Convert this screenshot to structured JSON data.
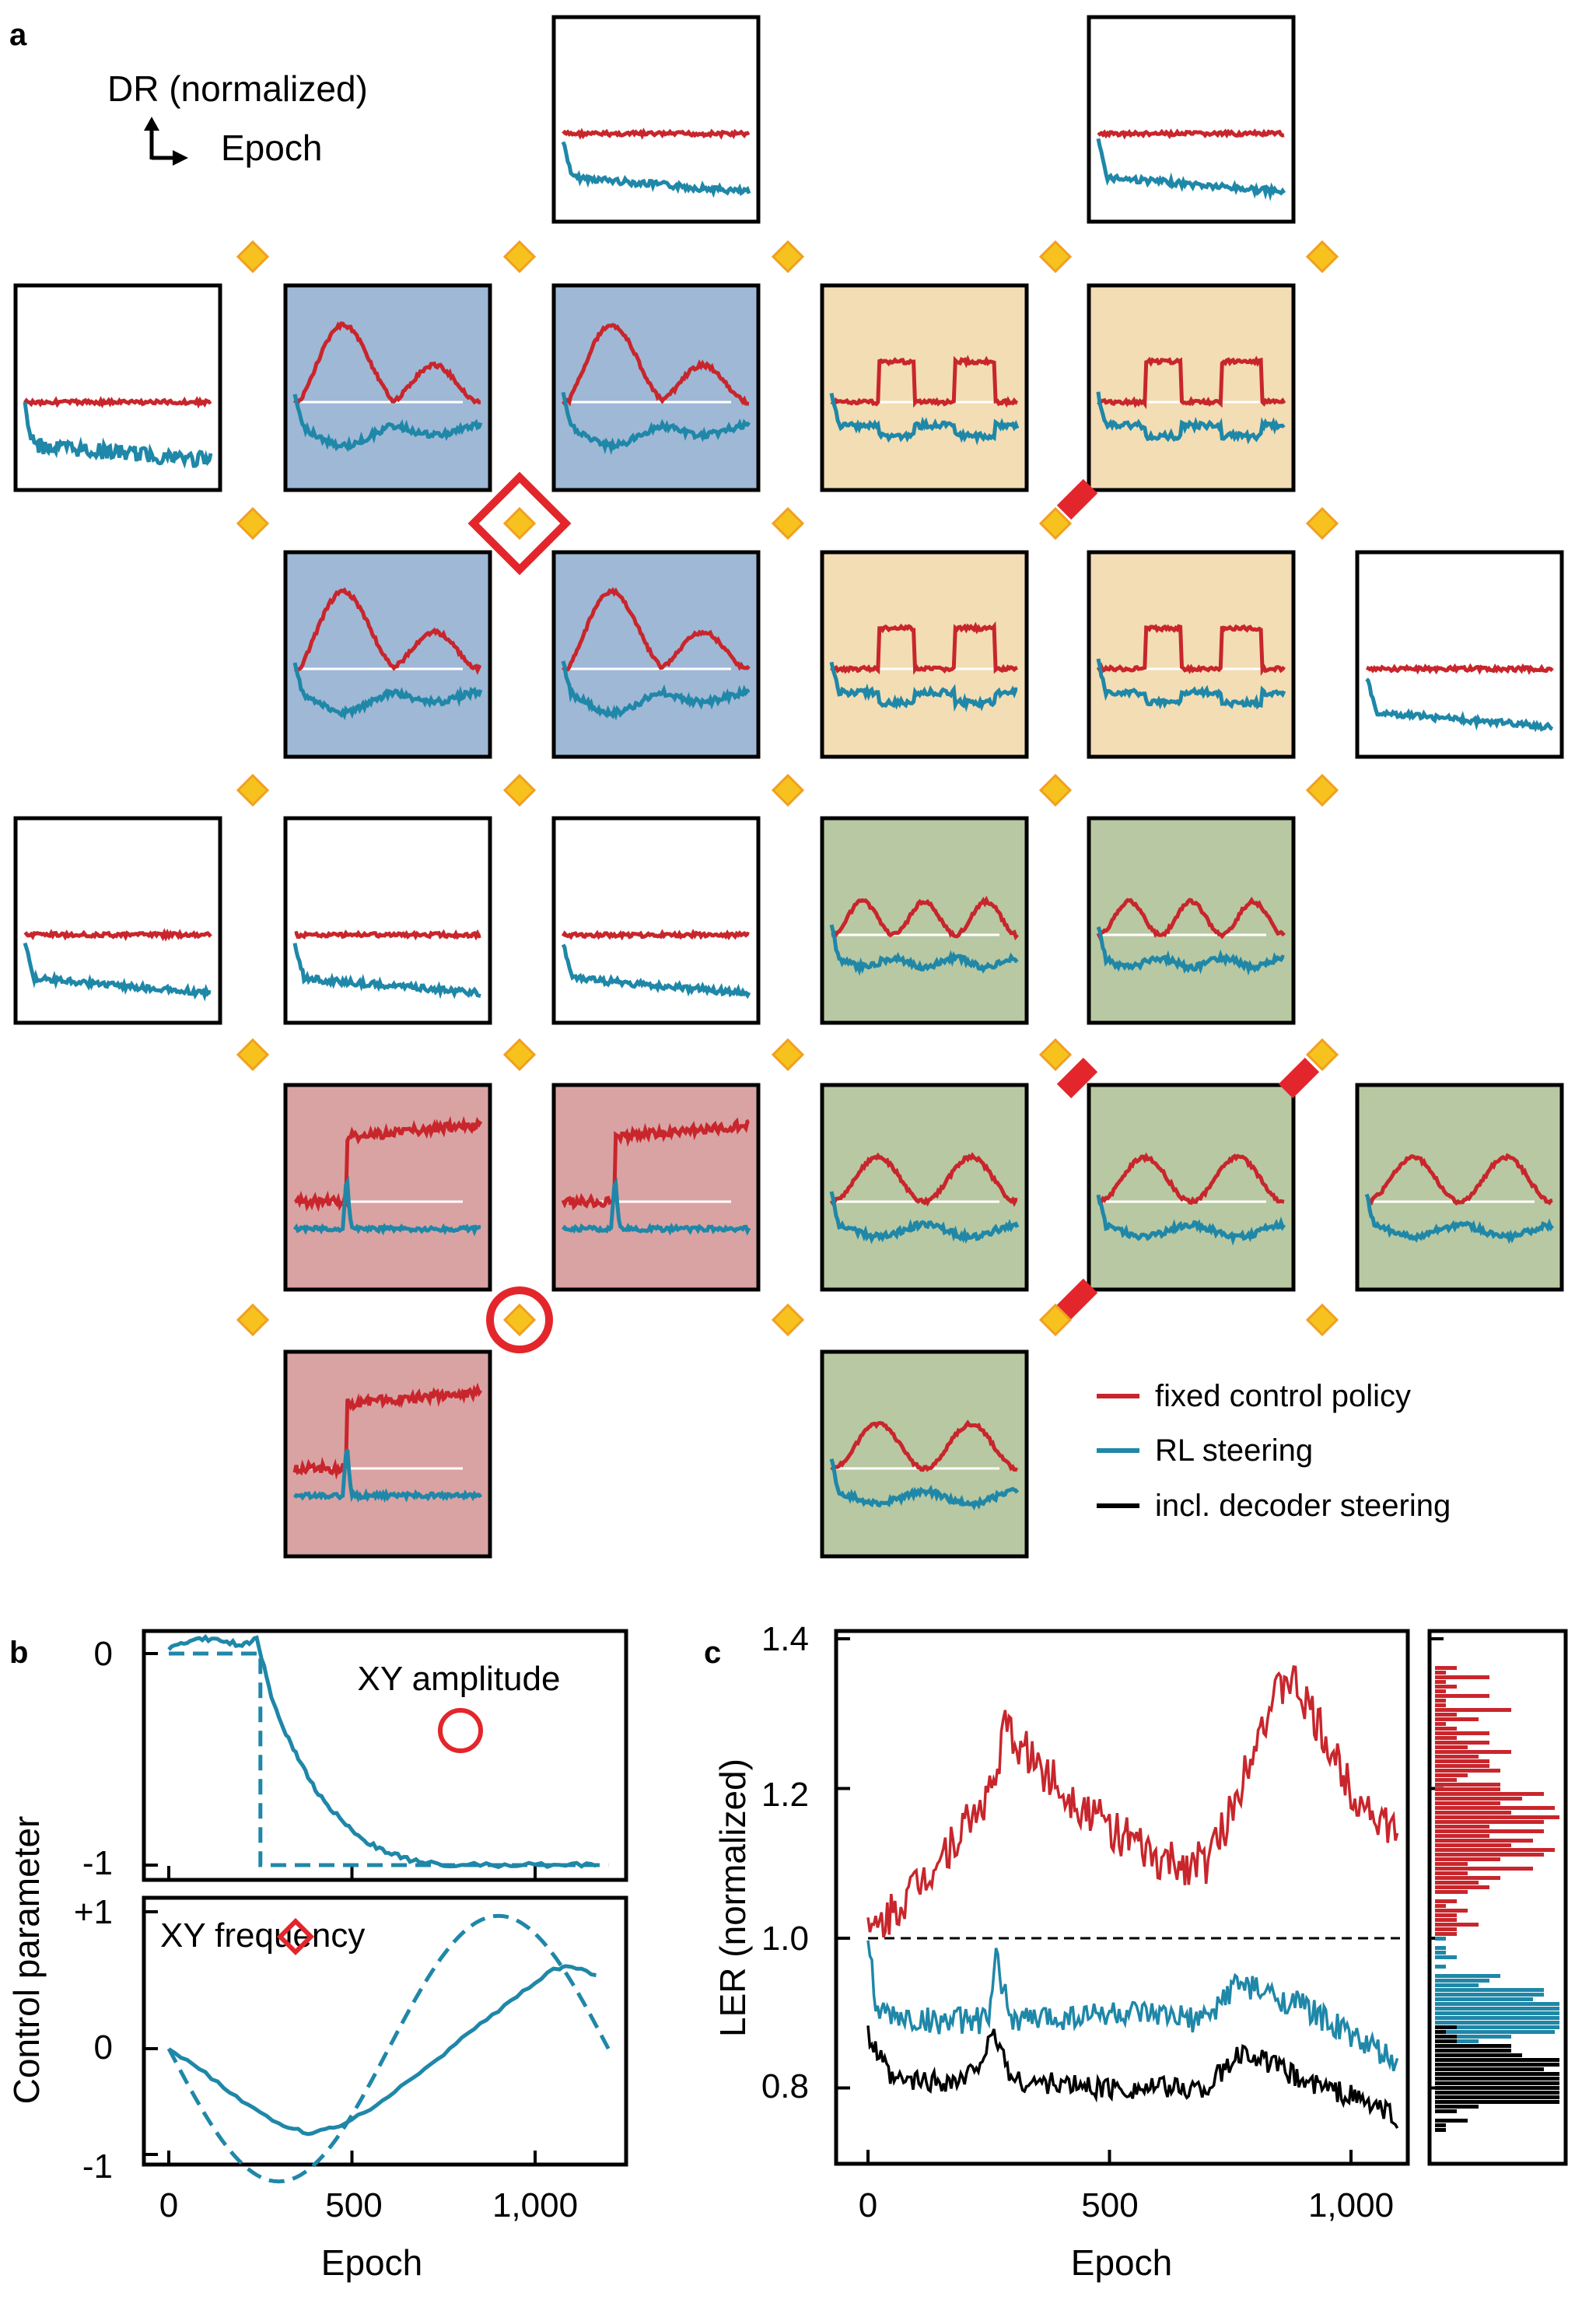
{
  "colors": {
    "fixed": "#c8262c",
    "rl": "#1f87a8",
    "decoder": "#000000",
    "blue_bg": "#9fb8d6",
    "orange_bg": "#f3ddb4",
    "green_bg": "#b8c8a2",
    "red_bg": "#d9a3a3",
    "qubit": "#f7c21d",
    "qubit_edge": "#f0a020",
    "marker": "#e3262c"
  },
  "panel_a": {
    "label": "a",
    "axis_hint_y": "DR (normalized)",
    "axis_hint_x": "Epoch",
    "legend": {
      "fixed": "fixed control policy",
      "rl": "RL steering",
      "decoder": "incl. decoder steering"
    },
    "tiles": [
      {
        "id": "r0c2",
        "bg": "white",
        "pattern": "flat"
      },
      {
        "id": "r0c4",
        "bg": "white",
        "pattern": "flat"
      },
      {
        "id": "r1c0",
        "bg": "white",
        "pattern": "flat-noisy"
      },
      {
        "id": "r1c1",
        "bg": "blue",
        "pattern": "sine"
      },
      {
        "id": "r1c2",
        "bg": "blue",
        "pattern": "sine"
      },
      {
        "id": "r1c3",
        "bg": "orange",
        "pattern": "square"
      },
      {
        "id": "r1c4",
        "bg": "orange",
        "pattern": "square"
      },
      {
        "id": "r2c1",
        "bg": "blue",
        "pattern": "sine"
      },
      {
        "id": "r2c2",
        "bg": "blue",
        "pattern": "sine"
      },
      {
        "id": "r2c3",
        "bg": "orange",
        "pattern": "square"
      },
      {
        "id": "r2c4",
        "bg": "orange",
        "pattern": "square"
      },
      {
        "id": "r2c5",
        "bg": "white",
        "pattern": "flat"
      },
      {
        "id": "r3c0",
        "bg": "white",
        "pattern": "flat"
      },
      {
        "id": "r3c1",
        "bg": "white",
        "pattern": "flat"
      },
      {
        "id": "r3c2",
        "bg": "white",
        "pattern": "flat"
      },
      {
        "id": "r3c3",
        "bg": "green",
        "pattern": "triple"
      },
      {
        "id": "r3c4",
        "bg": "green",
        "pattern": "triple"
      },
      {
        "id": "r4c1",
        "bg": "red",
        "pattern": "step"
      },
      {
        "id": "r4c2",
        "bg": "red",
        "pattern": "step"
      },
      {
        "id": "r4c3",
        "bg": "green",
        "pattern": "double"
      },
      {
        "id": "r4c4",
        "bg": "green",
        "pattern": "double"
      },
      {
        "id": "r4c5",
        "bg": "green",
        "pattern": "double"
      },
      {
        "id": "r5c1",
        "bg": "red",
        "pattern": "step"
      },
      {
        "id": "r5c3",
        "bg": "green",
        "pattern": "double"
      }
    ]
  },
  "panel_b": {
    "label": "b",
    "ylabel": "Control parameter",
    "xlabel": "Epoch",
    "top": {
      "title": "XY amplitude",
      "yticks": [
        "0",
        "-1"
      ],
      "target_dashed": [
        [
          0,
          0
        ],
        [
          250,
          0
        ],
        [
          250,
          -1
        ],
        [
          1200,
          -1
        ]
      ],
      "rl_curve": [
        [
          0,
          0.02
        ],
        [
          50,
          0.05
        ],
        [
          100,
          0.07
        ],
        [
          150,
          0.06
        ],
        [
          200,
          0.04
        ],
        [
          240,
          0.07
        ],
        [
          280,
          -0.2
        ],
        [
          320,
          -0.38
        ],
        [
          360,
          -0.52
        ],
        [
          400,
          -0.64
        ],
        [
          450,
          -0.75
        ],
        [
          500,
          -0.84
        ],
        [
          550,
          -0.9
        ],
        [
          600,
          -0.94
        ],
        [
          650,
          -0.97
        ],
        [
          700,
          -0.99
        ],
        [
          800,
          -1.0
        ],
        [
          900,
          -1.0
        ],
        [
          1000,
          -1.0
        ],
        [
          1100,
          -1.0
        ],
        [
          1180,
          -1.0
        ]
      ]
    },
    "bottom": {
      "title": "XY frequency",
      "yticks": [
        "+1",
        "0",
        "-1"
      ],
      "target_dashed": "sine",
      "rl_curve": [
        [
          0,
          0.0
        ],
        [
          100,
          -0.18
        ],
        [
          200,
          -0.38
        ],
        [
          300,
          -0.55
        ],
        [
          380,
          -0.62
        ],
        [
          450,
          -0.58
        ],
        [
          550,
          -0.44
        ],
        [
          650,
          -0.25
        ],
        [
          750,
          -0.04
        ],
        [
          850,
          0.18
        ],
        [
          950,
          0.38
        ],
        [
          1050,
          0.58
        ],
        [
          1100,
          0.6
        ],
        [
          1180,
          0.52
        ]
      ]
    },
    "xticks": [
      "0",
      "500",
      "1,000"
    ]
  },
  "panel_c": {
    "label": "c",
    "ylabel": "LER (normalized)",
    "xlabel": "Epoch",
    "yticks": [
      "0.8",
      "1.0",
      "1.2",
      "1.4"
    ],
    "xticks": [
      "0",
      "500",
      "1,000"
    ]
  },
  "chart_data": [
    {
      "type": "line",
      "title": "XY amplitude",
      "xlabel": "Epoch",
      "ylabel": "Control parameter",
      "xlim": [
        -40,
        1230
      ],
      "ylim": [
        -1.05,
        0.15
      ],
      "series": [
        {
          "name": "target (dashed)",
          "x": [
            0,
            250,
            250,
            1200
          ],
          "values": [
            0,
            0,
            -1,
            -1
          ]
        },
        {
          "name": "RL steering",
          "x": [
            0,
            100,
            200,
            240,
            300,
            400,
            500,
            600,
            700,
            800,
            1000,
            1180
          ],
          "values": [
            0.02,
            0.07,
            0.04,
            0.07,
            -0.3,
            -0.64,
            -0.84,
            -0.94,
            -0.99,
            -1.0,
            -1.0,
            -1.0
          ]
        }
      ]
    },
    {
      "type": "line",
      "title": "XY frequency",
      "xlabel": "Epoch",
      "ylabel": "Control parameter",
      "xlim": [
        -40,
        1230
      ],
      "ylim": [
        -1.05,
        1.05
      ],
      "series": [
        {
          "name": "target (dashed)",
          "x": [
            0,
            300,
            600,
            900,
            1200
          ],
          "values": [
            0,
            -0.97,
            0,
            0.97,
            0
          ]
        },
        {
          "name": "RL steering",
          "x": [
            0,
            200,
            380,
            550,
            750,
            950,
            1100,
            1180
          ],
          "values": [
            0,
            -0.38,
            -0.62,
            -0.44,
            -0.04,
            0.38,
            0.6,
            0.52
          ]
        }
      ]
    },
    {
      "type": "line",
      "title": "",
      "xlabel": "Epoch",
      "ylabel": "LER (normalized)",
      "xlim": [
        -20,
        1130
      ],
      "ylim": [
        0.74,
        1.42
      ],
      "series": [
        {
          "name": "fixed control policy",
          "x": [
            0,
            100,
            200,
            260,
            280,
            400,
            500,
            600,
            700,
            760,
            800,
            870,
            900,
            1000,
            1100
          ],
          "values": [
            1.0,
            1.07,
            1.15,
            1.2,
            1.28,
            1.2,
            1.15,
            1.1,
            1.1,
            1.18,
            1.27,
            1.35,
            1.32,
            1.2,
            1.13
          ]
        },
        {
          "name": "RL steering",
          "x": [
            0,
            20,
            100,
            250,
            265,
            300,
            500,
            700,
            760,
            900,
            1000,
            1100
          ],
          "values": [
            1.0,
            0.9,
            0.89,
            0.89,
            0.97,
            0.89,
            0.9,
            0.89,
            0.94,
            0.91,
            0.87,
            0.83
          ]
        },
        {
          "name": "incl. decoder steering",
          "x": [
            0,
            50,
            200,
            265,
            300,
            500,
            700,
            780,
            900,
            1000,
            1100
          ],
          "values": [
            0.87,
            0.81,
            0.81,
            0.87,
            0.81,
            0.8,
            0.8,
            0.85,
            0.81,
            0.79,
            0.76
          ]
        },
        {
          "name": "baseline (dashed)",
          "x": [
            0,
            1100
          ],
          "values": [
            1.0,
            1.0
          ]
        }
      ]
    }
  ]
}
